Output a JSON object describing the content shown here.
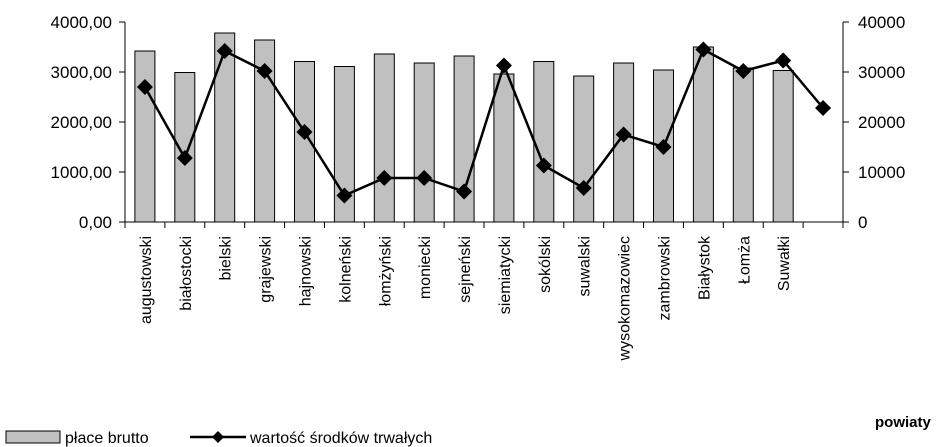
{
  "chart_data": {
    "type": "bar",
    "categories": [
      "augustowski",
      "białostocki",
      "bielski",
      "grajewski",
      "hajnowski",
      "kolneński",
      "łomżyński",
      "moniecki",
      "sejneński",
      "siemiatycki",
      "sokólski",
      "suwalski",
      "wysokomazowiec",
      "zambrowski",
      "Białystok",
      "Łomża",
      "Suwałki",
      ""
    ],
    "series": [
      {
        "name": "płace brutto",
        "type": "bar",
        "axis": "left",
        "color": "#c0c0c0",
        "values": [
          3420,
          2990,
          3780,
          3640,
          3210,
          3110,
          3360,
          3180,
          3320,
          2960,
          3210,
          2920,
          3180,
          3040,
          3500,
          3080,
          3030,
          null
        ]
      },
      {
        "name": "wartość środków trwałych",
        "type": "line",
        "axis": "right",
        "color": "#000000",
        "marker": "diamond",
        "values": [
          27000,
          12800,
          34200,
          30200,
          18000,
          5300,
          8800,
          8800,
          6100,
          31300,
          11300,
          6800,
          17500,
          15000,
          34500,
          30200,
          32300,
          22800
        ]
      }
    ],
    "y_left": {
      "ylim": [
        0,
        4000
      ],
      "ticks": [
        "0,00",
        "1000,00",
        "2000,00",
        "3000,00",
        "4000,00"
      ]
    },
    "y_right": {
      "ylim": [
        0,
        40000
      ],
      "ticks": [
        "0",
        "10000",
        "20000",
        "30000",
        "40000"
      ]
    },
    "xlabel": "powiaty",
    "grid": false,
    "legend": {
      "position": "bottom-left",
      "entries": [
        "płace brutto",
        "wartość środków trwałych"
      ]
    }
  }
}
